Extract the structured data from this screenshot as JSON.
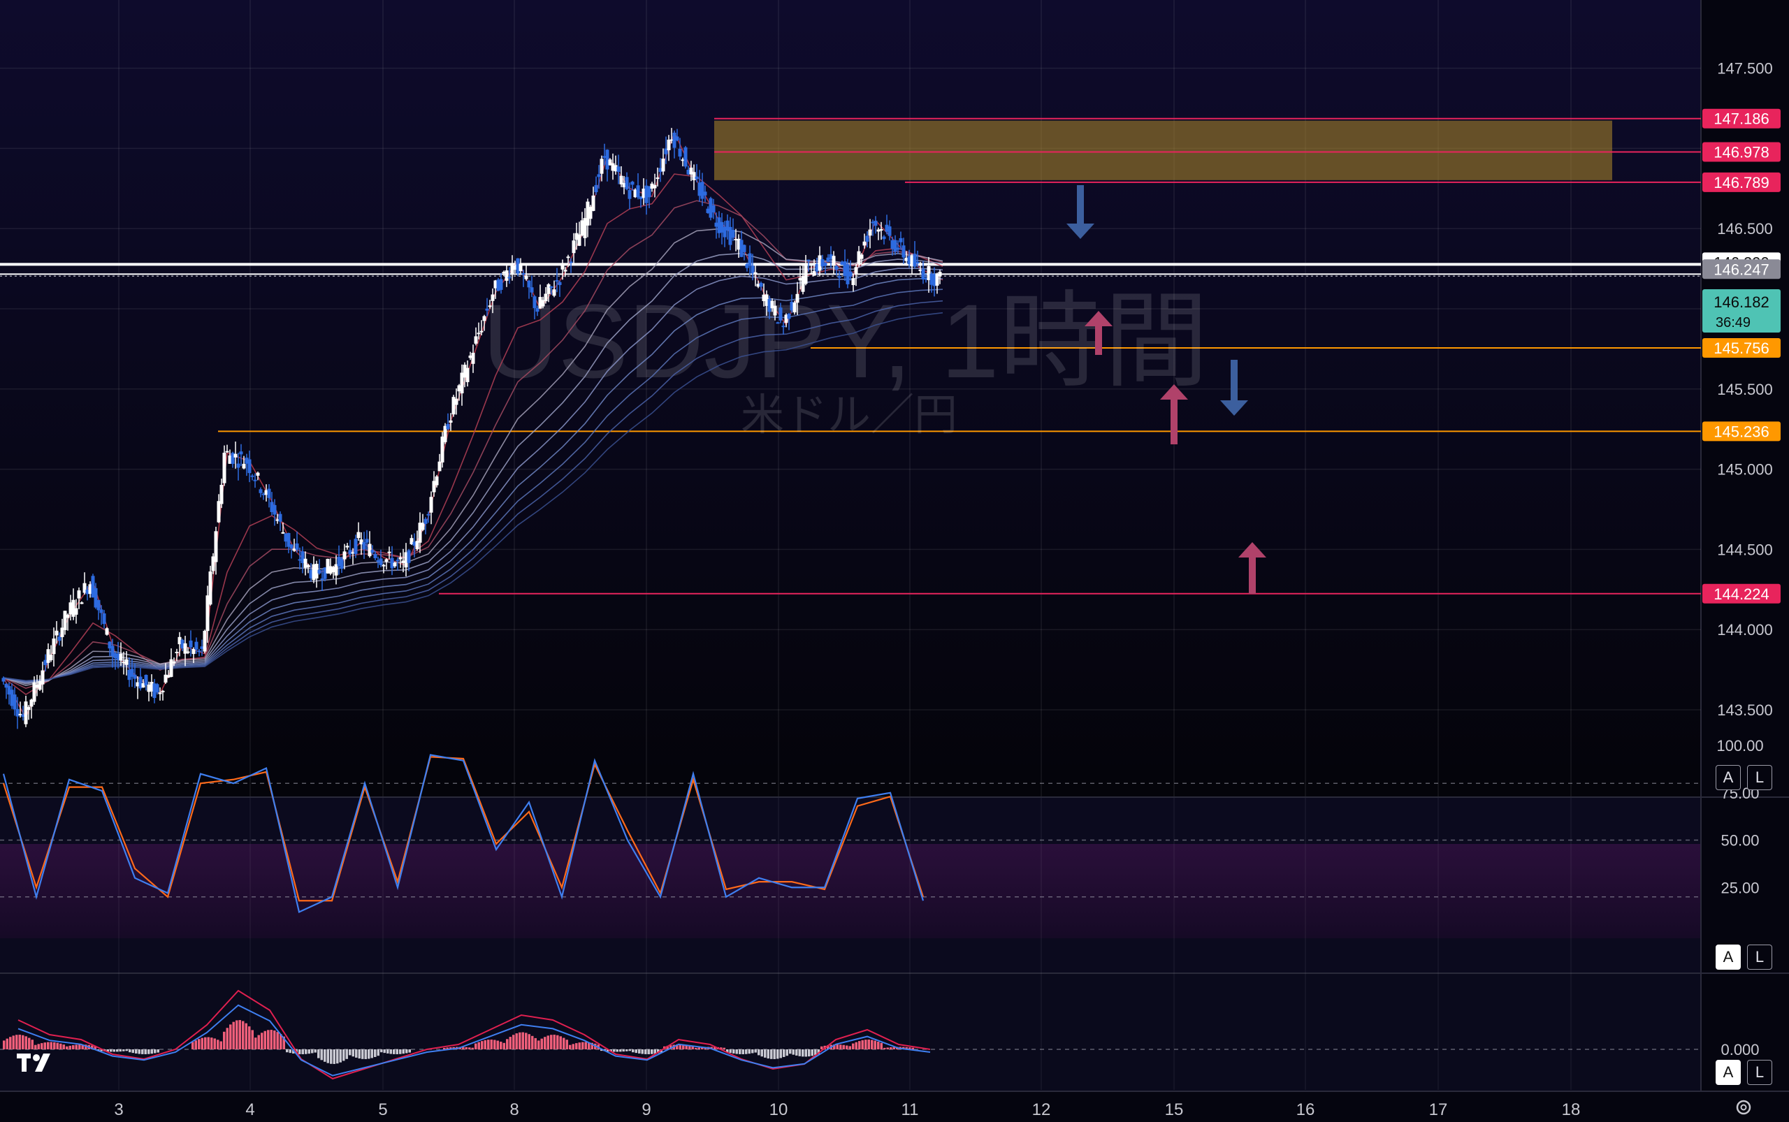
{
  "watermark": {
    "symbol": "USDJPY, 1時間",
    "subtitle": "米ドル／円"
  },
  "price_axis": {
    "ticks": [
      "147.500",
      "146.500",
      "145.500",
      "145.000",
      "144.500",
      "144.000",
      "143.500"
    ],
    "tick_values": [
      147.5,
      146.5,
      145.5,
      145.0,
      144.5,
      144.0,
      143.5
    ]
  },
  "price_labels": [
    {
      "text": "147.186",
      "value": 147.186,
      "color": "#e8245c"
    },
    {
      "text": "146.978",
      "value": 146.978,
      "color": "#e8245c"
    },
    {
      "text": "146.789",
      "value": 146.789,
      "color": "#e8245c"
    },
    {
      "text": "146.290",
      "value": 146.29,
      "color": "#ffffff"
    },
    {
      "text": "146.247",
      "value": 146.247,
      "color": "#8a8a96"
    },
    {
      "text": "145.756",
      "value": 145.756,
      "color": "#ff9800"
    },
    {
      "text": "145.236",
      "value": 145.236,
      "color": "#ff9800"
    },
    {
      "text": "144.224",
      "value": 144.224,
      "color": "#e8245c"
    }
  ],
  "current_price": {
    "text": "146.182",
    "countdown": "36:49",
    "color": "#4fc3b4"
  },
  "time_axis": {
    "labels": [
      "3",
      "4",
      "5",
      "8",
      "9",
      "10",
      "11",
      "12",
      "15",
      "16",
      "17",
      "18"
    ]
  },
  "stoch_axis": {
    "ticks": [
      "100.00",
      "75.00",
      "50.00",
      "25.00"
    ]
  },
  "macd_axis": {
    "ticks": [
      "0.000"
    ]
  },
  "buttons": {
    "auto": "A",
    "log": "L"
  },
  "colors": {
    "accent_red": "#e8245c",
    "accent_orange": "#ff9800",
    "up": "#ffffff",
    "down": "#2d6be0",
    "zone": "#b08a2a"
  },
  "chart_data": {
    "type": "line",
    "title": "USDJPY, 1時間",
    "subtitle": "米ドル／円",
    "x_labels": [
      "3",
      "4",
      "5",
      "8",
      "9",
      "10",
      "11",
      "12",
      "15",
      "16",
      "17",
      "18"
    ],
    "x": [
      0,
      5,
      10,
      15,
      20,
      25,
      30,
      35,
      40,
      45,
      50,
      55,
      60,
      65,
      70,
      75,
      80,
      85,
      90,
      95,
      100,
      105,
      110,
      115,
      120,
      125,
      130,
      135,
      140,
      145,
      150,
      155,
      160,
      165,
      170,
      175,
      180,
      185,
      190,
      195,
      200,
      205,
      210
    ],
    "series": [
      {
        "name": "USDJPY",
        "values": [
          143.7,
          143.45,
          143.8,
          144.1,
          144.3,
          143.85,
          143.7,
          143.6,
          143.9,
          143.85,
          145.1,
          145.05,
          144.8,
          144.5,
          144.35,
          144.4,
          144.55,
          144.45,
          144.4,
          144.7,
          145.3,
          145.7,
          146.1,
          146.3,
          146.0,
          146.2,
          146.5,
          146.95,
          146.75,
          146.7,
          147.1,
          146.8,
          146.55,
          146.4,
          146.1,
          145.9,
          146.25,
          146.3,
          146.2,
          146.55,
          146.4,
          146.25,
          146.18
        ]
      }
    ],
    "levels": [
      147.186,
      146.978,
      146.789,
      146.29,
      146.247,
      145.756,
      145.236,
      144.224
    ],
    "ylim": [
      143.2,
      147.9
    ],
    "zone": {
      "from": 146.789,
      "to": 147.186
    },
    "stochastic": {
      "ylim": [
        0,
        100
      ],
      "k": [
        85,
        20,
        82,
        76,
        30,
        22,
        85,
        80,
        88,
        12,
        20,
        80,
        25,
        95,
        92,
        45,
        70,
        20,
        92,
        50,
        20,
        85,
        20,
        30,
        25,
        25,
        72,
        75,
        18
      ],
      "d": [
        80,
        25,
        78,
        78,
        35,
        20,
        80,
        82,
        86,
        18,
        18,
        78,
        28,
        94,
        93,
        48,
        65,
        25,
        90,
        55,
        22,
        82,
        24,
        28,
        28,
        24,
        68,
        73,
        20
      ]
    },
    "macd": {
      "hist": [
        0.06,
        0.03,
        0.02,
        -0.01,
        -0.02,
        0.0,
        0.05,
        0.12,
        0.08,
        -0.02,
        -0.06,
        -0.04,
        -0.02,
        0.0,
        0.01,
        0.04,
        0.07,
        0.06,
        0.03,
        -0.01,
        -0.02,
        0.02,
        0.01,
        -0.02,
        -0.04,
        -0.03,
        0.02,
        0.04,
        0.01,
        0.0
      ]
    }
  }
}
